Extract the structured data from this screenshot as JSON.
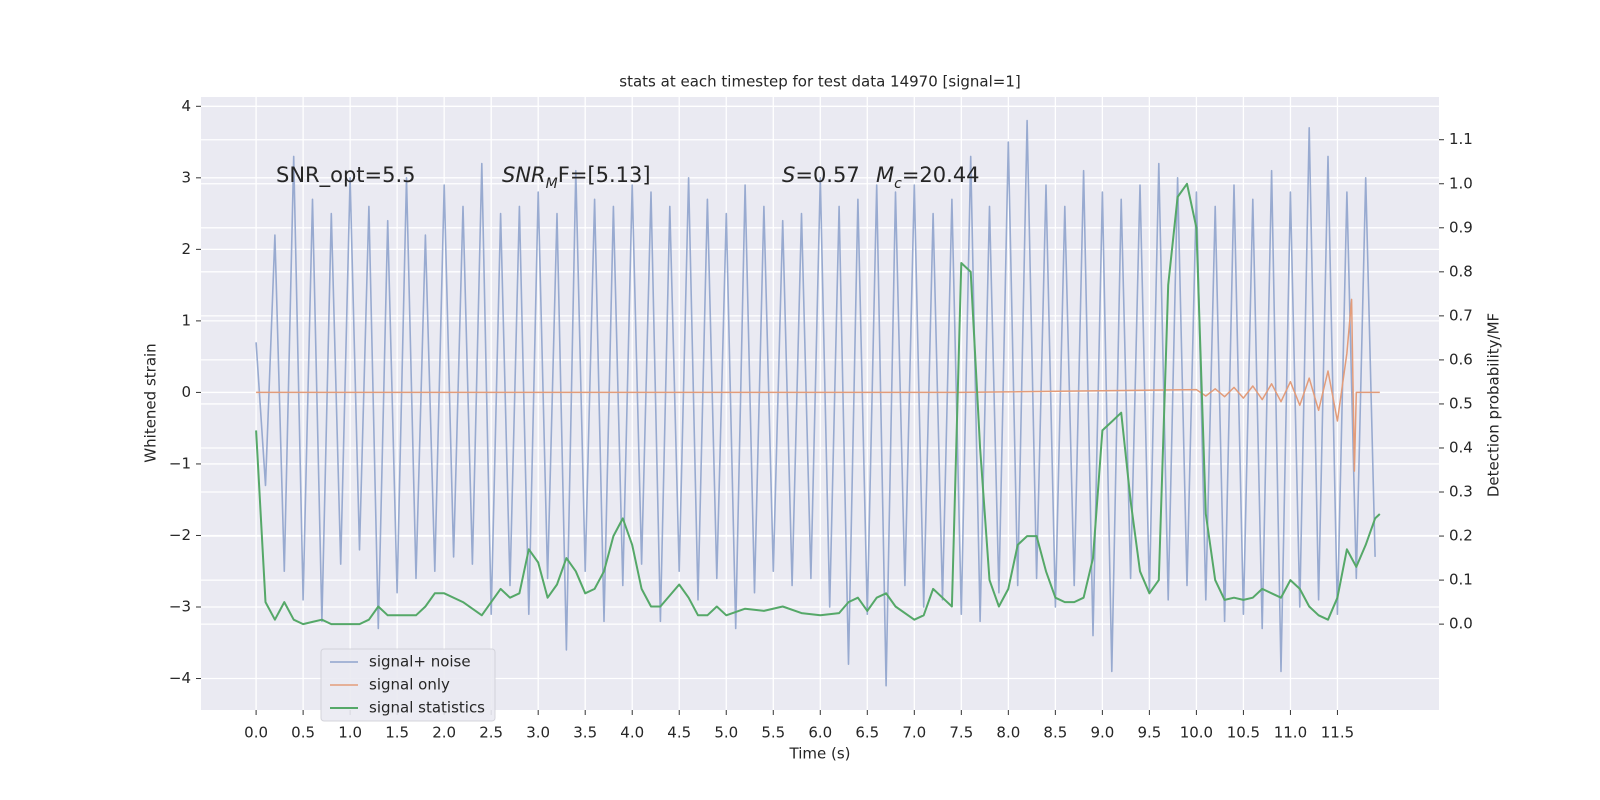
{
  "chart_data": {
    "type": "line",
    "title": "stats at each timestep for test data 14970 [signal=1]",
    "x_label": "Time (s)",
    "y_label": "Whitened strain",
    "y2_label": "Detection probability/MF",
    "annotations": [
      {
        "parts": [
          "SNR_opt=5.5"
        ]
      },
      {
        "parts": [
          "SNR",
          "M",
          "F=[5.13]"
        ]
      },
      {
        "parts": [
          "S",
          "=0.57"
        ]
      },
      {
        "parts": [
          "M",
          "c",
          "=20.44"
        ]
      }
    ],
    "xlim": [
      -0.586,
      12.58
    ],
    "ylim": [
      -4.44,
      4.13
    ],
    "y2lim": [
      -0.195,
      1.197
    ],
    "xticks": [
      {
        "value": 0,
        "label": "0.0"
      },
      {
        "value": 0.5,
        "label": "0.5"
      },
      {
        "value": 1,
        "label": "1.0"
      },
      {
        "value": 1.5,
        "label": "1.5"
      },
      {
        "value": 2,
        "label": "2.0"
      },
      {
        "value": 2.5,
        "label": "2.5"
      },
      {
        "value": 3,
        "label": "3.0"
      },
      {
        "value": 3.5,
        "label": "3.5"
      },
      {
        "value": 4,
        "label": "4.0"
      },
      {
        "value": 4.5,
        "label": "4.5"
      },
      {
        "value": 5,
        "label": "5.0"
      },
      {
        "value": 5.5,
        "label": "5.5"
      },
      {
        "value": 6,
        "label": "6.0"
      },
      {
        "value": 6.5,
        "label": "6.5"
      },
      {
        "value": 7,
        "label": "7.0"
      },
      {
        "value": 7.5,
        "label": "7.5"
      },
      {
        "value": 8,
        "label": "8.0"
      },
      {
        "value": 8.5,
        "label": "8.5"
      },
      {
        "value": 9,
        "label": "9.0"
      },
      {
        "value": 9.5,
        "label": "9.5"
      },
      {
        "value": 10,
        "label": "10.0"
      },
      {
        "value": 10.5,
        "label": "10.5"
      },
      {
        "value": 11,
        "label": "11.0"
      },
      {
        "value": 11.5,
        "label": "11.5"
      }
    ],
    "yticks": [
      {
        "value": -4,
        "label": "−4"
      },
      {
        "value": -3,
        "label": "−3"
      },
      {
        "value": -2,
        "label": "−2"
      },
      {
        "value": -1,
        "label": "−1"
      },
      0,
      1,
      2,
      3,
      4
    ],
    "y2ticks": [
      {
        "value": 0,
        "label": "0.0"
      },
      {
        "value": 0.1,
        "label": "0.1"
      },
      {
        "value": 0.2,
        "label": "0.2"
      },
      {
        "value": 0.3,
        "label": "0.3"
      },
      {
        "value": 0.4,
        "label": "0.4"
      },
      {
        "value": 0.5,
        "label": "0.5"
      },
      {
        "value": 0.6,
        "label": "0.6"
      },
      {
        "value": 0.7,
        "label": "0.7"
      },
      {
        "value": 0.8,
        "label": "0.8"
      },
      {
        "value": 0.9,
        "label": "0.9"
      },
      {
        "value": 1,
        "label": "1.0"
      },
      {
        "value": 1.1,
        "label": "1.1"
      }
    ],
    "grid": true,
    "legend": "lower left",
    "series": [
      {
        "name": "signal+ noise",
        "color": "#8fa3cc",
        "x": [
          0,
          0.1,
          0.2,
          0.3,
          0.4,
          0.5,
          0.6,
          0.7,
          0.8,
          0.9,
          1,
          1.1,
          1.2,
          1.3,
          1.4,
          1.5,
          1.6,
          1.7,
          1.8,
          1.9,
          2,
          2.1,
          2.2,
          2.3,
          2.4,
          2.5,
          2.6,
          2.7,
          2.8,
          2.9,
          3,
          3.1,
          3.2,
          3.3,
          3.4,
          3.5,
          3.6,
          3.7,
          3.8,
          3.9,
          4,
          4.1,
          4.2,
          4.3,
          4.4,
          4.5,
          4.6,
          4.7,
          4.8,
          4.9,
          5,
          5.1,
          5.2,
          5.3,
          5.4,
          5.5,
          5.6,
          5.7,
          5.8,
          5.9,
          6,
          6.1,
          6.2,
          6.3,
          6.4,
          6.5,
          6.6,
          6.7,
          6.8,
          6.9,
          7,
          7.1,
          7.2,
          7.3,
          7.4,
          7.5,
          7.6,
          7.7,
          7.8,
          7.9,
          8,
          8.1,
          8.2,
          8.3,
          8.4,
          8.5,
          8.6,
          8.7,
          8.8,
          8.9,
          9,
          9.1,
          9.2,
          9.3,
          9.4,
          9.5,
          9.6,
          9.7,
          9.8,
          9.9,
          10,
          10.1,
          10.2,
          10.3,
          10.4,
          10.5,
          10.6,
          10.7,
          10.8,
          10.9,
          11,
          11.1,
          11.2,
          11.3,
          11.4,
          11.5,
          11.6,
          11.7,
          11.8,
          11.9
        ],
        "values": [
          0.7,
          -1.3,
          2.2,
          -2.5,
          3.3,
          -2.9,
          2.7,
          -3.2,
          2.5,
          -2.4,
          3.0,
          -2.2,
          2.6,
          -3.3,
          2.4,
          -2.8,
          3.0,
          -2.6,
          2.2,
          -2.5,
          2.9,
          -2.3,
          2.6,
          -2.4,
          3.2,
          -3.1,
          2.5,
          -2.7,
          2.6,
          -3.1,
          2.8,
          -2.6,
          2.5,
          -3.6,
          3.1,
          -2.5,
          2.7,
          -3.2,
          2.6,
          -2.7,
          2.9,
          -2.4,
          2.8,
          -3.2,
          2.6,
          -2.5,
          3.0,
          -2.9,
          2.7,
          -2.6,
          2.5,
          -3.3,
          2.9,
          -2.8,
          2.6,
          -2.5,
          2.4,
          -2.7,
          2.5,
          -2.6,
          3.0,
          -3.0,
          2.6,
          -3.8,
          2.7,
          -3.1,
          2.9,
          -4.1,
          2.8,
          -2.7,
          2.9,
          -3.0,
          2.5,
          -2.9,
          2.7,
          -3.1,
          3.3,
          -3.2,
          2.6,
          -2.8,
          3.5,
          -2.7,
          3.8,
          -2.6,
          2.9,
          -3.0,
          2.6,
          -2.7,
          3.1,
          -3.4,
          2.8,
          -3.9,
          2.7,
          -2.6,
          2.9,
          -2.8,
          3.2,
          -2.9,
          3.0,
          -2.7,
          2.8,
          -2.9,
          2.6,
          -3.2,
          2.9,
          -3.1,
          2.7,
          -3.3,
          3.1,
          -3.9,
          2.8,
          -3.0,
          3.7,
          -2.9,
          3.3,
          -3.1,
          2.8,
          -2.6,
          3.0,
          -2.3
        ]
      },
      {
        "name": "signal only",
        "color": "#e39c7a",
        "x": [
          0,
          7.5,
          10,
          10.1,
          10.2,
          10.3,
          10.4,
          10.5,
          10.6,
          10.7,
          10.8,
          10.9,
          11,
          11.1,
          11.2,
          11.3,
          11.4,
          11.5,
          11.6,
          11.65,
          11.68,
          11.7,
          11.95
        ],
        "values": [
          0,
          0,
          0.04,
          -0.05,
          0.05,
          -0.06,
          0.07,
          -0.08,
          0.09,
          -0.1,
          0.12,
          -0.13,
          0.15,
          -0.18,
          0.2,
          -0.25,
          0.3,
          -0.4,
          0.55,
          1.3,
          -1.1,
          0,
          0
        ]
      },
      {
        "name": "signal statistics",
        "color": "#55a868",
        "axis": "y2",
        "x": [
          0,
          0.1,
          0.2,
          0.3,
          0.4,
          0.5,
          0.6,
          0.7,
          0.8,
          1.0,
          1.1,
          1.2,
          1.3,
          1.4,
          1.6,
          1.7,
          1.8,
          1.9,
          2.0,
          2.2,
          2.4,
          2.5,
          2.6,
          2.7,
          2.8,
          2.9,
          3.0,
          3.1,
          3.2,
          3.3,
          3.4,
          3.5,
          3.6,
          3.7,
          3.8,
          3.9,
          4.0,
          4.1,
          4.2,
          4.3,
          4.5,
          4.6,
          4.7,
          4.8,
          4.9,
          5.0,
          5.2,
          5.4,
          5.6,
          5.8,
          6.0,
          6.2,
          6.3,
          6.4,
          6.5,
          6.6,
          6.7,
          6.8,
          7.0,
          7.1,
          7.2,
          7.3,
          7.4,
          7.5,
          7.6,
          7.7,
          7.8,
          7.9,
          8.0,
          8.1,
          8.2,
          8.3,
          8.4,
          8.5,
          8.6,
          8.7,
          8.8,
          8.9,
          9.0,
          9.1,
          9.2,
          9.3,
          9.4,
          9.5,
          9.6,
          9.7,
          9.8,
          9.9,
          10.0,
          10.1,
          10.2,
          10.3,
          10.4,
          10.5,
          10.6,
          10.7,
          10.8,
          10.9,
          11.0,
          11.1,
          11.2,
          11.3,
          11.4,
          11.5,
          11.6,
          11.7,
          11.8,
          11.9,
          11.95
        ],
        "values": [
          0.44,
          0.05,
          0.01,
          0.05,
          0.01,
          0.0,
          0.005,
          0.01,
          0.0,
          0.0,
          0.0,
          0.01,
          0.04,
          0.02,
          0.02,
          0.02,
          0.04,
          0.07,
          0.07,
          0.05,
          0.02,
          0.05,
          0.08,
          0.06,
          0.07,
          0.17,
          0.14,
          0.06,
          0.09,
          0.15,
          0.12,
          0.07,
          0.08,
          0.12,
          0.2,
          0.24,
          0.18,
          0.08,
          0.04,
          0.04,
          0.09,
          0.06,
          0.02,
          0.02,
          0.04,
          0.02,
          0.035,
          0.03,
          0.04,
          0.025,
          0.02,
          0.025,
          0.05,
          0.06,
          0.03,
          0.06,
          0.07,
          0.04,
          0.01,
          0.02,
          0.08,
          0.06,
          0.04,
          0.82,
          0.8,
          0.4,
          0.1,
          0.04,
          0.08,
          0.18,
          0.2,
          0.2,
          0.12,
          0.06,
          0.05,
          0.05,
          0.06,
          0.15,
          0.44,
          0.46,
          0.48,
          0.28,
          0.12,
          0.07,
          0.1,
          0.77,
          0.97,
          1.0,
          0.9,
          0.25,
          0.1,
          0.055,
          0.06,
          0.055,
          0.06,
          0.08,
          0.07,
          0.06,
          0.1,
          0.08,
          0.04,
          0.02,
          0.01,
          0.06,
          0.17,
          0.13,
          0.18,
          0.24,
          0.25
        ]
      }
    ]
  }
}
